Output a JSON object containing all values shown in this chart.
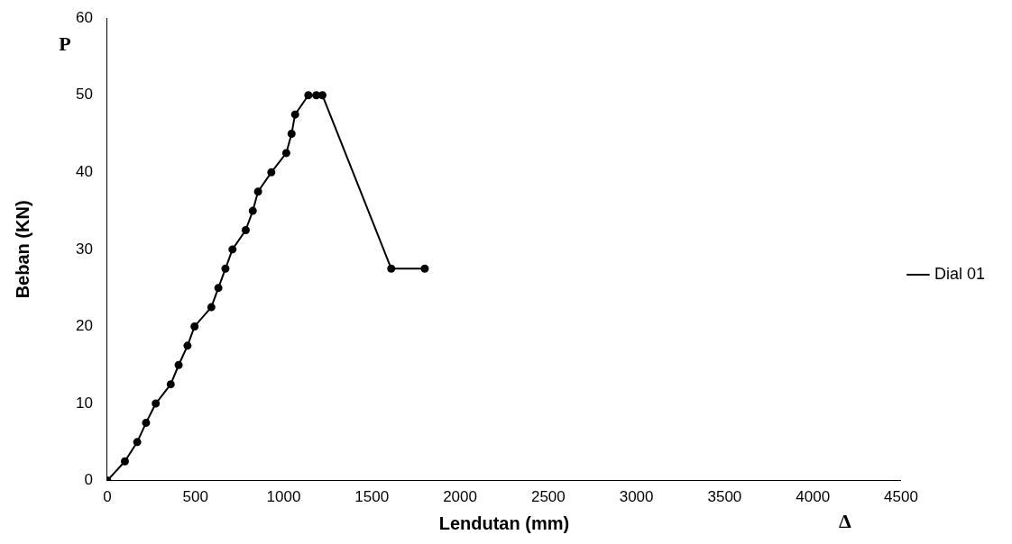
{
  "chart_data": {
    "type": "line",
    "xlabel": "Lendutan (mm)",
    "ylabel": "Beban (KN)",
    "annotations": [
      "P",
      "Δ"
    ],
    "xlim": [
      0,
      4500
    ],
    "xticks": [
      0,
      500,
      1000,
      1500,
      2000,
      2500,
      3000,
      3500,
      4000,
      4500
    ],
    "ylim": [
      0,
      60
    ],
    "yticks": [
      0,
      10,
      20,
      30,
      40,
      50,
      60
    ],
    "grid": false,
    "legend": "right",
    "marker": "circle",
    "line_style": "solid",
    "series": [
      {
        "name": "Dial 01",
        "color": "#000000",
        "x": [
          0,
          100,
          170,
          220,
          275,
          360,
          405,
          455,
          495,
          590,
          630,
          670,
          710,
          785,
          825,
          855,
          930,
          1015,
          1045,
          1065,
          1140,
          1185,
          1220,
          1610,
          1800
        ],
        "values": [
          0,
          2.5,
          5,
          7.5,
          10,
          12.5,
          15,
          17.5,
          20,
          22.5,
          25,
          27.5,
          30,
          32.5,
          35,
          37.5,
          40,
          42.5,
          45,
          47.5,
          50,
          50,
          50,
          27.5,
          27.5
        ]
      }
    ]
  }
}
